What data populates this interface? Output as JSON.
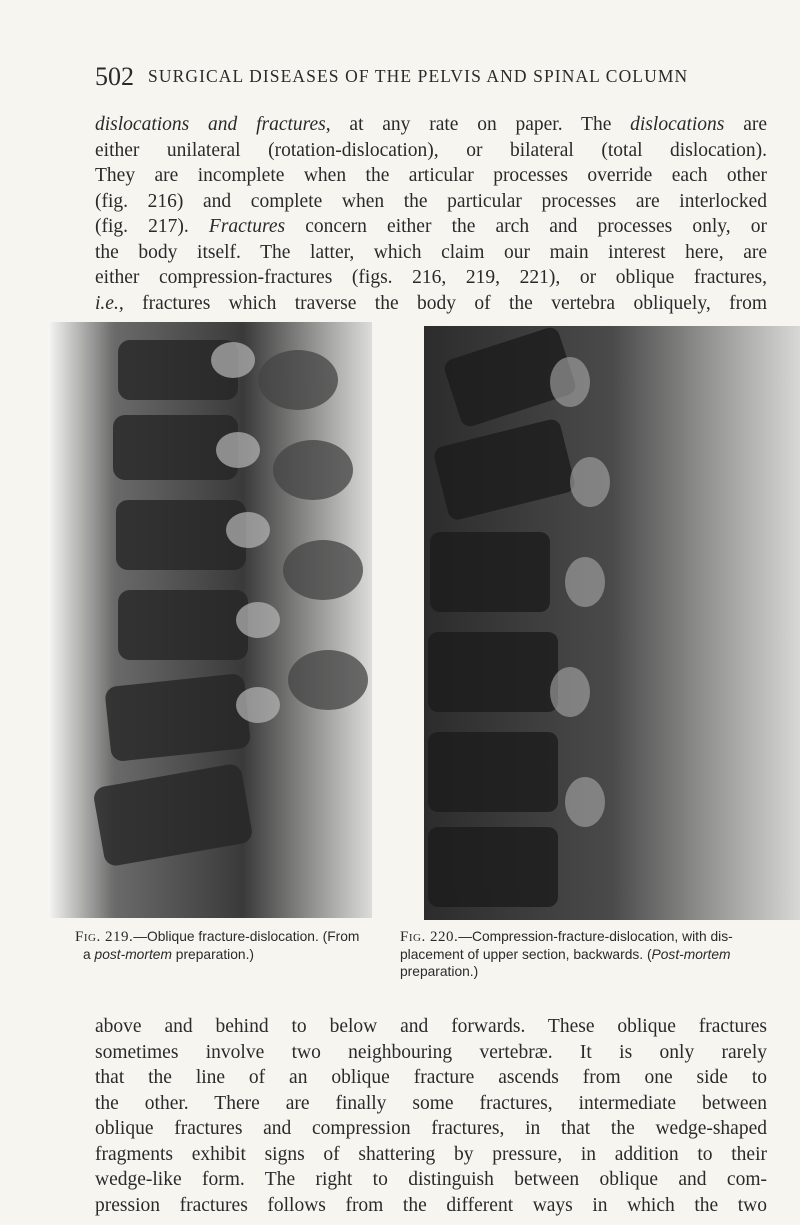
{
  "header": {
    "page_number": "502",
    "title": "SURGICAL DISEASES OF THE PELVIS AND SPINAL COLUMN"
  },
  "paragraphs": [
    {
      "lines": [
        [
          {
            "text": "dislocations and fractures",
            "italic": true
          },
          ", at any rate on paper. The ",
          {
            "text": "dislocations",
            "italic": true
          },
          " are"
        ],
        [
          "either unilateral (rotation-dislocation), or bilateral (total dislocation)."
        ],
        [
          "They are incomplete when the articular processes override each other"
        ],
        [
          "(fig. 216) and complete when the particular processes are interlocked"
        ],
        [
          "(fig. 217). ",
          {
            "text": "Fractures",
            "italic": true
          },
          " concern either the arch and processes only, or"
        ],
        [
          "the body itself. The latter, which claim our main interest here, are"
        ],
        [
          "either compression-fractures (figs. 216, 219, 221), or oblique fractures,"
        ],
        [
          {
            "text": "i.e.,",
            "italic": true
          },
          " fractures which traverse the body of the vertebra obliquely, from"
        ]
      ]
    },
    {
      "lines": [
        [
          "above and behind to below and forwards. These oblique fractures"
        ],
        [
          "sometimes involve two neighbouring vertebræ. It is only rarely"
        ],
        [
          "that the line of an oblique fracture ascends from one side to"
        ],
        [
          "the other. There are finally some fractures, intermediate between"
        ],
        [
          "oblique fractures and compression fractures, in that the wedge-shaped"
        ],
        [
          "fragments exhibit signs of shattering by pressure, in addition to their"
        ],
        [
          "wedge-like form. The right to distinguish between oblique and com-"
        ],
        [
          "pression fractures follows from the different ways in which the two"
        ]
      ]
    }
  ],
  "figures": [
    {
      "caption": [
        [
          {
            "text": "Fig. 219.",
            "small_caps": true
          },
          "—Oblique fracture-dislocation. (From"
        ],
        [
          "a ",
          {
            "text": "post-mortem",
            "italic": true
          },
          " preparation.)"
        ]
      ]
    },
    {
      "caption": [
        [
          {
            "text": "Fig. 220.",
            "small_caps": true
          },
          "—Compression-fracture-dislocation, with dis-"
        ],
        [
          "placement of upper section, backwards. (",
          {
            "text": "Post-mortem",
            "italic": true
          }
        ],
        [
          "preparation.)"
        ]
      ]
    }
  ]
}
